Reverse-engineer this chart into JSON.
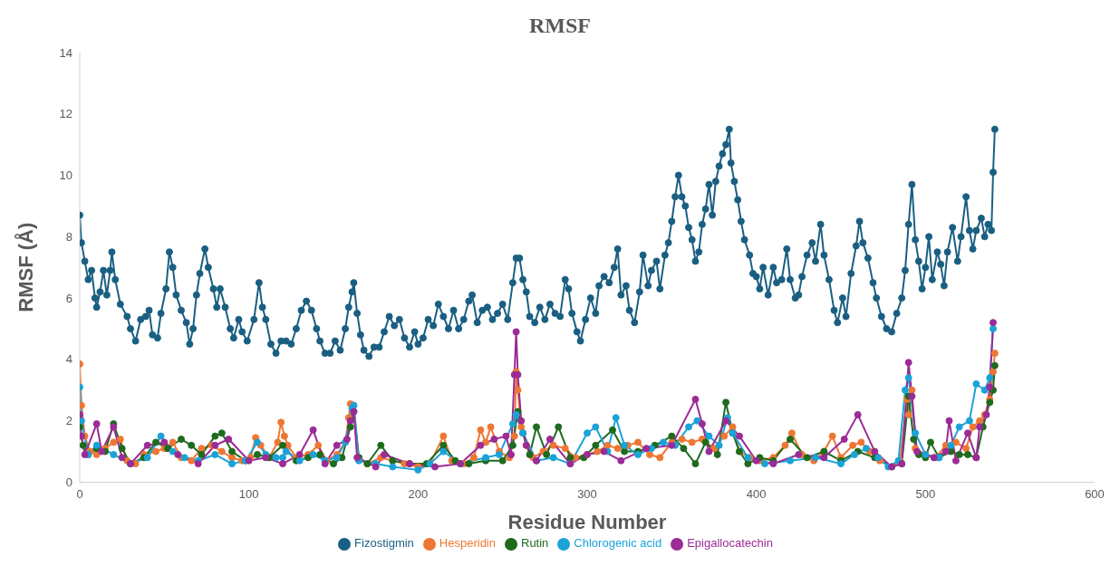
{
  "chart_data": {
    "type": "line",
    "title": "RMSF",
    "xlabel": "Residue Number",
    "ylabel": "RMSF (Å)",
    "xlim": [
      0,
      600
    ],
    "xticks": [
      0,
      100,
      200,
      300,
      400,
      500,
      600
    ],
    "ylim": [
      0,
      14
    ],
    "yticks": [
      0,
      2,
      4,
      6,
      8,
      10,
      12,
      14
    ],
    "grid": false,
    "legend": "bottom",
    "marker": "circle",
    "line_style": "solid",
    "series": [
      {
        "name": "Fizostigmin",
        "color": "#1a5f82",
        "x": [
          0,
          1,
          3,
          5,
          7,
          9,
          10,
          12,
          14,
          16,
          18,
          19,
          21,
          24,
          28,
          30,
          33,
          36,
          39,
          41,
          43,
          46,
          48,
          51,
          53,
          55,
          57,
          60,
          63,
          65,
          67,
          69,
          71,
          74,
          76,
          79,
          81,
          83,
          86,
          89,
          91,
          94,
          96,
          99,
          103,
          106,
          108,
          110,
          113,
          116,
          119,
          122,
          125,
          128,
          131,
          134,
          137,
          140,
          142,
          145,
          148,
          151,
          154,
          157,
          159,
          161,
          162,
          164,
          166,
          168,
          171,
          174,
          177,
          180,
          183,
          186,
          189,
          192,
          195,
          198,
          200,
          203,
          206,
          209,
          212,
          215,
          218,
          221,
          224,
          227,
          230,
          232,
          235,
          238,
          241,
          244,
          247,
          250,
          253,
          256,
          258,
          260,
          262,
          264,
          266,
          269,
          272,
          275,
          278,
          281,
          284,
          287,
          289,
          291,
          294,
          296,
          299,
          302,
          305,
          307,
          310,
          313,
          316,
          318,
          320,
          323,
          325,
          328,
          331,
          333,
          336,
          338,
          341,
          343,
          346,
          348,
          350,
          352,
          354,
          356,
          358,
          360,
          362,
          364,
          366,
          368,
          370,
          372,
          374,
          376,
          378,
          380,
          382,
          384,
          385,
          387,
          389,
          391,
          393,
          396,
          398,
          400,
          402,
          404,
          407,
          410,
          412,
          415,
          418,
          420,
          423,
          425,
          427,
          430,
          433,
          435,
          438,
          440,
          443,
          446,
          448,
          451,
          453,
          456,
          459,
          461,
          463,
          466,
          469,
          471,
          474,
          477,
          480,
          483,
          486,
          488,
          490,
          492,
          494,
          496,
          498,
          500,
          502,
          504,
          507,
          509,
          511,
          513,
          516,
          519,
          521,
          524,
          526,
          528,
          530,
          533,
          535,
          537,
          539,
          540,
          541
        ],
        "values": [
          8.7,
          7.8,
          7.2,
          6.6,
          6.9,
          6.0,
          5.7,
          6.2,
          6.9,
          6.1,
          6.9,
          7.5,
          6.6,
          5.8,
          5.4,
          5.0,
          4.6,
          5.3,
          5.4,
          5.6,
          4.8,
          4.7,
          5.5,
          6.3,
          7.5,
          7.0,
          6.1,
          5.6,
          5.2,
          4.5,
          5.0,
          6.1,
          6.8,
          7.6,
          7.0,
          6.3,
          5.7,
          6.3,
          5.7,
          5.0,
          4.7,
          5.3,
          4.9,
          4.6,
          5.3,
          6.5,
          5.7,
          5.3,
          4.5,
          4.2,
          4.6,
          4.6,
          4.5,
          5.0,
          5.6,
          5.9,
          5.6,
          5.0,
          4.6,
          4.2,
          4.2,
          4.6,
          4.3,
          5.0,
          5.7,
          6.2,
          6.5,
          5.5,
          4.8,
          4.3,
          4.1,
          4.4,
          4.4,
          4.9,
          5.4,
          5.1,
          5.3,
          4.7,
          4.4,
          4.9,
          4.5,
          4.7,
          5.3,
          5.1,
          5.8,
          5.4,
          5.0,
          5.6,
          5.0,
          5.3,
          5.9,
          6.1,
          5.2,
          5.6,
          5.7,
          5.3,
          5.5,
          5.8,
          5.3,
          6.5,
          7.3,
          7.3,
          6.6,
          6.2,
          5.4,
          5.2,
          5.7,
          5.3,
          5.8,
          5.5,
          5.4,
          6.6,
          6.3,
          5.5,
          4.9,
          4.6,
          5.3,
          6.0,
          5.5,
          6.4,
          6.7,
          6.5,
          7.0,
          7.6,
          6.1,
          6.4,
          5.6,
          5.2,
          6.2,
          7.4,
          6.4,
          6.9,
          7.2,
          6.3,
          7.4,
          7.8,
          8.5,
          9.3,
          10.0,
          9.3,
          9.0,
          8.3,
          7.9,
          7.2,
          7.5,
          8.4,
          8.9,
          9.7,
          8.7,
          9.8,
          10.3,
          10.7,
          11.0,
          11.5,
          10.4,
          9.8,
          9.2,
          8.5,
          7.9,
          7.4,
          6.8,
          6.7,
          6.3,
          7.0,
          6.1,
          7.0,
          6.5,
          6.6,
          7.6,
          6.6,
          6.0,
          6.1,
          6.7,
          7.4,
          7.8,
          7.2,
          8.4,
          7.4,
          6.6,
          5.6,
          5.2,
          6.0,
          5.4,
          6.8,
          7.7,
          8.5,
          7.8,
          7.3,
          6.5,
          6.0,
          5.4,
          5.0,
          4.9,
          5.5,
          6.0,
          6.9,
          8.4,
          9.7,
          7.9,
          7.2,
          6.3,
          7.0,
          8.0,
          6.6,
          7.5,
          7.1,
          6.4,
          7.5,
          8.3,
          7.2,
          8.0,
          9.3,
          8.2,
          7.6,
          8.2,
          8.6,
          8.0,
          8.4,
          8.2,
          10.1,
          11.5
        ]
      },
      {
        "name": "Hesperidin",
        "color": "#ee7733",
        "x": [
          0,
          1,
          3,
          6,
          10,
          15,
          20,
          24,
          28,
          33,
          38,
          45,
          50,
          55,
          60,
          66,
          72,
          78,
          84,
          90,
          96,
          101,
          104,
          107,
          112,
          117,
          119,
          121,
          123,
          128,
          135,
          141,
          146,
          152,
          157,
          159,
          160,
          162,
          165,
          170,
          178,
          185,
          192,
          200,
          207,
          215,
          220,
          227,
          233,
          237,
          240,
          243,
          248,
          254,
          257,
          258,
          259,
          261,
          264,
          268,
          274,
          280,
          287,
          293,
          300,
          306,
          312,
          318,
          324,
          330,
          337,
          343,
          350,
          356,
          362,
          368,
          375,
          381,
          386,
          390,
          396,
          402,
          410,
          417,
          421,
          427,
          434,
          440,
          445,
          450,
          457,
          462,
          467,
          473,
          480,
          485,
          489,
          490,
          492,
          494,
          500,
          506,
          512,
          518,
          524,
          528,
          532,
          535,
          538,
          540,
          541
        ],
        "values": [
          3.85,
          2.5,
          1.5,
          1.0,
          0.9,
          1.1,
          1.3,
          1.4,
          0.7,
          0.6,
          0.9,
          1.0,
          1.1,
          1.3,
          0.8,
          0.7,
          1.1,
          1.2,
          1.0,
          0.8,
          0.7,
          0.8,
          1.45,
          1.2,
          0.8,
          1.3,
          1.95,
          1.5,
          1.2,
          0.8,
          0.9,
          1.2,
          0.7,
          0.9,
          1.3,
          2.1,
          2.55,
          2.5,
          0.8,
          0.6,
          0.8,
          0.7,
          0.6,
          0.5,
          0.6,
          1.5,
          0.7,
          0.6,
          0.8,
          1.7,
          1.3,
          1.8,
          1.0,
          0.8,
          1.5,
          3.6,
          3.0,
          1.8,
          1.2,
          0.8,
          1.0,
          1.2,
          1.1,
          0.8,
          0.9,
          1.0,
          1.2,
          1.1,
          1.2,
          1.3,
          0.9,
          0.8,
          1.3,
          1.4,
          1.3,
          1.4,
          1.1,
          1.5,
          1.8,
          1.0,
          0.8,
          0.7,
          0.8,
          1.2,
          1.6,
          0.9,
          0.7,
          1.0,
          1.5,
          0.8,
          1.2,
          1.3,
          1.0,
          0.7,
          0.5,
          0.7,
          2.7,
          2.2,
          3.0,
          1.1,
          0.9,
          0.8,
          1.2,
          1.3,
          1.1,
          1.8,
          2.0,
          2.2,
          2.7,
          3.6,
          4.2
        ]
      },
      {
        "name": "Rutin",
        "color": "#1e6b1e",
        "x": [
          0,
          2,
          5,
          10,
          15,
          20,
          25,
          30,
          38,
          45,
          52,
          60,
          66,
          72,
          80,
          84,
          90,
          98,
          105,
          112,
          120,
          128,
          135,
          142,
          150,
          155,
          160,
          162,
          165,
          170,
          178,
          185,
          195,
          205,
          215,
          222,
          230,
          240,
          250,
          256,
          259,
          262,
          266,
          270,
          276,
          283,
          290,
          298,
          305,
          315,
          322,
          330,
          340,
          350,
          357,
          364,
          370,
          377,
          382,
          386,
          390,
          395,
          402,
          410,
          420,
          430,
          440,
          450,
          460,
          470,
          480,
          486,
          490,
          493,
          496,
          500,
          503,
          508,
          515,
          520,
          525,
          530,
          534,
          538,
          540,
          541
        ],
        "values": [
          1.8,
          1.2,
          0.9,
          1.1,
          1.0,
          1.9,
          1.1,
          0.6,
          0.8,
          1.3,
          1.1,
          1.4,
          1.2,
          0.9,
          1.5,
          1.6,
          1.0,
          0.7,
          0.9,
          0.8,
          1.2,
          0.7,
          0.8,
          0.9,
          0.6,
          0.8,
          1.8,
          2.3,
          0.8,
          0.6,
          1.2,
          0.7,
          0.6,
          0.6,
          1.2,
          0.7,
          0.6,
          0.7,
          0.7,
          1.2,
          2.3,
          1.6,
          0.9,
          1.8,
          0.9,
          1.8,
          0.8,
          0.8,
          1.2,
          1.7,
          1.0,
          1.0,
          1.2,
          1.5,
          1.1,
          0.6,
          1.3,
          0.9,
          2.6,
          1.6,
          1.0,
          0.6,
          0.8,
          0.7,
          1.4,
          0.8,
          1.0,
          0.7,
          1.0,
          0.8,
          0.5,
          0.6,
          2.8,
          1.4,
          0.9,
          0.8,
          1.3,
          0.8,
          1.0,
          0.9,
          0.9,
          0.8,
          1.8,
          2.6,
          3.0,
          3.8
        ]
      },
      {
        "name": "Chlorogenic acid",
        "color": "#1ba3d8",
        "x": [
          0,
          1,
          5,
          10,
          20,
          30,
          40,
          48,
          55,
          62,
          70,
          80,
          90,
          98,
          105,
          110,
          116,
          120,
          122,
          130,
          138,
          145,
          152,
          157,
          161,
          162,
          165,
          175,
          185,
          200,
          207,
          215,
          225,
          240,
          248,
          256,
          258,
          262,
          270,
          280,
          290,
          300,
          305,
          312,
          317,
          322,
          330,
          338,
          345,
          352,
          360,
          365,
          372,
          378,
          383,
          386,
          395,
          405,
          420,
          435,
          450,
          458,
          465,
          472,
          478,
          484,
          488,
          490,
          494,
          500,
          508,
          515,
          520,
          526,
          530,
          535,
          538,
          540
        ],
        "values": [
          3.1,
          2.0,
          0.9,
          1.2,
          0.9,
          0.6,
          0.8,
          1.5,
          1.0,
          0.8,
          0.7,
          0.9,
          0.6,
          0.7,
          1.3,
          0.9,
          0.8,
          0.8,
          1.0,
          0.7,
          0.9,
          0.7,
          0.8,
          1.3,
          2.4,
          2.5,
          0.7,
          0.6,
          0.5,
          0.4,
          0.6,
          1.0,
          0.6,
          0.8,
          0.9,
          1.9,
          2.2,
          1.6,
          0.7,
          0.8,
          0.6,
          1.6,
          1.8,
          1.0,
          2.1,
          1.2,
          0.9,
          1.1,
          1.3,
          1.2,
          1.8,
          2.0,
          1.5,
          1.2,
          2.1,
          1.6,
          0.8,
          0.6,
          0.7,
          0.8,
          0.6,
          0.9,
          1.1,
          0.8,
          0.5,
          0.7,
          3.0,
          3.4,
          1.6,
          0.9,
          0.8,
          1.2,
          1.8,
          2.0,
          3.2,
          3.0,
          3.4,
          5.0
        ]
      },
      {
        "name": "Epigallocatechin",
        "color": "#9b2b96",
        "x": [
          0,
          1,
          3,
          10,
          13,
          20,
          25,
          30,
          40,
          50,
          58,
          70,
          80,
          88,
          100,
          110,
          120,
          130,
          138,
          145,
          152,
          158,
          160,
          162,
          164,
          175,
          180,
          195,
          210,
          225,
          237,
          245,
          252,
          255,
          257,
          258,
          259,
          261,
          264,
          270,
          278,
          290,
          300,
          310,
          320,
          335,
          350,
          364,
          368,
          372,
          382,
          390,
          400,
          410,
          425,
          440,
          452,
          460,
          470,
          480,
          486,
          490,
          492,
          495,
          505,
          512,
          514,
          518,
          525,
          530,
          532,
          536,
          538,
          540
        ],
        "values": [
          2.2,
          1.5,
          0.9,
          1.9,
          1.0,
          1.8,
          0.8,
          0.6,
          1.2,
          1.3,
          0.9,
          0.6,
          1.2,
          1.4,
          0.7,
          0.8,
          0.6,
          0.9,
          1.7,
          0.6,
          1.2,
          1.4,
          2.0,
          2.3,
          0.8,
          0.5,
          0.9,
          0.6,
          0.5,
          0.6,
          1.2,
          1.4,
          1.5,
          0.9,
          3.5,
          4.9,
          3.5,
          2.0,
          1.2,
          0.7,
          1.4,
          0.6,
          0.9,
          1.0,
          0.7,
          1.1,
          1.2,
          2.7,
          1.9,
          1.0,
          2.0,
          1.5,
          0.7,
          0.6,
          0.9,
          0.8,
          1.4,
          2.2,
          1.0,
          0.5,
          0.6,
          3.9,
          2.8,
          1.0,
          0.8,
          1.0,
          2.0,
          0.7,
          1.6,
          0.8,
          1.8,
          2.2,
          3.1,
          5.2
        ]
      }
    ]
  }
}
